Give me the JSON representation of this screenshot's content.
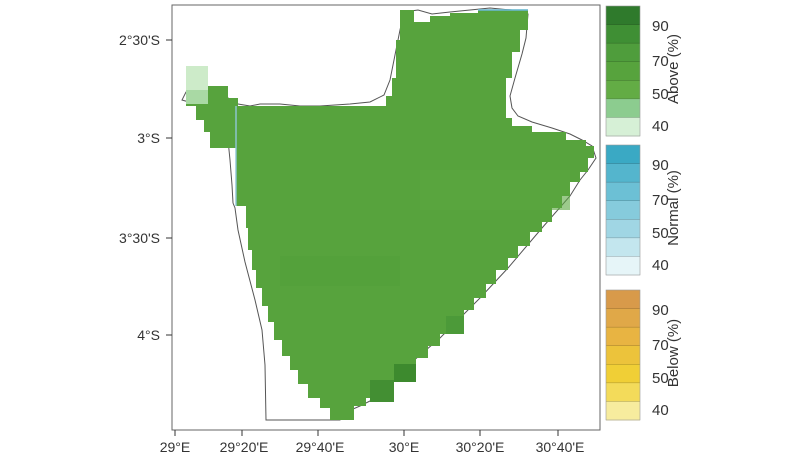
{
  "map": {
    "x_axis_labels": [
      "29°E",
      "29°20'E",
      "29°40'E",
      "30°E",
      "30°20'E",
      "30°40'E"
    ],
    "y_axis_labels": [
      "2°30'S",
      "3°S",
      "3°30'S",
      "4°S"
    ],
    "fill_color": "#57a33d",
    "fill_color_dark": "#3d8a2e",
    "fill_color_light": "#cdebc9",
    "outline_color": "#555555"
  },
  "legend": [
    {
      "title": "Above (%)",
      "ticks": [
        "90",
        "70",
        "50",
        "40"
      ],
      "colors": [
        "#2f7a2c",
        "#3f8f34",
        "#4f9d3c",
        "#57a33d",
        "#63ac45",
        "#8ccc8f",
        "#d6f0d6"
      ]
    },
    {
      "title": "Normal (%)",
      "ticks": [
        "90",
        "70",
        "50",
        "40"
      ],
      "colors": [
        "#3aa9c4",
        "#54b5cd",
        "#6cc0d5",
        "#86cbdc",
        "#a0d6e4",
        "#c3e6ee",
        "#e6f5f8"
      ]
    },
    {
      "title": "Below (%)",
      "ticks": [
        "90",
        "70",
        "50",
        "40"
      ],
      "colors": [
        "#d89a4a",
        "#e0a848",
        "#e8b442",
        "#ecc33b",
        "#f0cf36",
        "#f3db5a",
        "#f7ec9e"
      ]
    }
  ]
}
